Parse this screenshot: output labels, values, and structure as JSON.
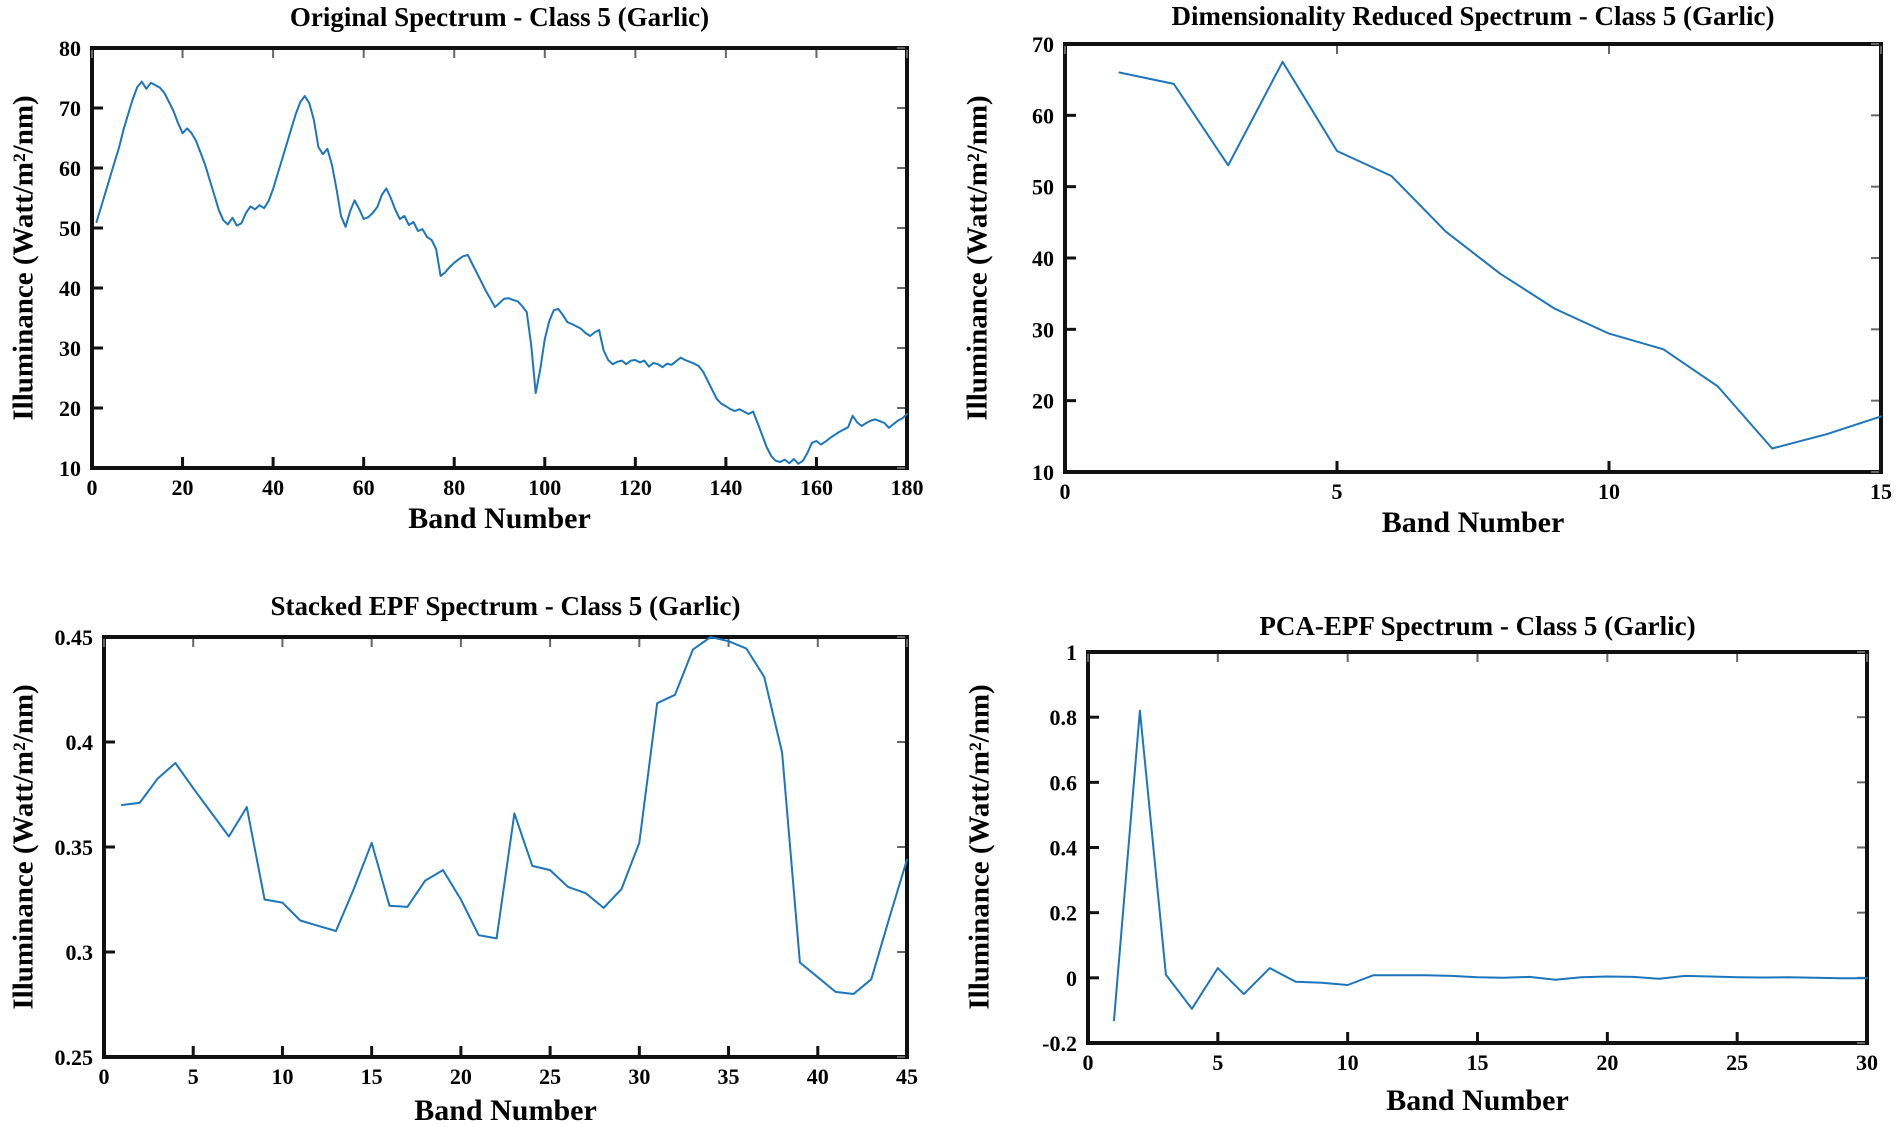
{
  "figure": {
    "background": "#ffffff",
    "axis_color": "#111111",
    "text_color": "#000000",
    "x_axis_label": "Band Number",
    "y_axis_label": "Illuminance (Watt/m²/nm)"
  },
  "chart_data": [
    {
      "id": "original-spectrum",
      "type": "line",
      "title": "Original Spectrum - Class 5 (Garlic)",
      "xlabel": "Band Number",
      "ylabel": "Illuminance (Watt/m²/nm)",
      "xlim": [
        0,
        180
      ],
      "ylim": [
        10,
        80
      ],
      "xticks": [
        0,
        20,
        40,
        60,
        80,
        100,
        120,
        140,
        160,
        180
      ],
      "yticks": [
        10,
        20,
        30,
        40,
        50,
        60,
        70,
        80
      ],
      "grid": false,
      "legend": "none",
      "line_color": "#1b76bd",
      "x": [
        1,
        2,
        3,
        4,
        5,
        6,
        7,
        8,
        9,
        10,
        11,
        12,
        13,
        14,
        15,
        16,
        17,
        18,
        19,
        20,
        21,
        22,
        23,
        24,
        25,
        26,
        27,
        28,
        29,
        30,
        31,
        32,
        33,
        34,
        35,
        36,
        37,
        38,
        39,
        40,
        41,
        42,
        43,
        44,
        45,
        46,
        47,
        48,
        49,
        50,
        51,
        52,
        53,
        54,
        55,
        56,
        57,
        58,
        59,
        60,
        61,
        62,
        63,
        64,
        65,
        66,
        67,
        68,
        69,
        70,
        71,
        72,
        73,
        74,
        75,
        76,
        77,
        78,
        79,
        80,
        81,
        82,
        83,
        84,
        85,
        86,
        87,
        88,
        89,
        90,
        91,
        92,
        93,
        94,
        95,
        96,
        97,
        98,
        99,
        100,
        101,
        102,
        103,
        104,
        105,
        106,
        107,
        108,
        109,
        110,
        111,
        112,
        113,
        114,
        115,
        116,
        117,
        118,
        119,
        120,
        121,
        122,
        123,
        124,
        125,
        126,
        127,
        128,
        129,
        130,
        131,
        132,
        133,
        134,
        135,
        136,
        137,
        138,
        139,
        140,
        141,
        142,
        143,
        144,
        145,
        146,
        147,
        148,
        149,
        150,
        151,
        152,
        153,
        154,
        155,
        156,
        157,
        158,
        159,
        160,
        161,
        162,
        163,
        164,
        165,
        166,
        167,
        168,
        169,
        170,
        171,
        172,
        173,
        174,
        175,
        176,
        177,
        178,
        179,
        180
      ],
      "y": [
        51,
        53.5,
        56,
        58.5,
        61,
        63.5,
        66.5,
        69,
        71.5,
        73.5,
        74.4,
        73.2,
        74.2,
        73.8,
        73.4,
        72.5,
        71,
        69.5,
        67.5,
        65.8,
        66.6,
        65.8,
        64.5,
        62.5,
        60.5,
        58,
        55.5,
        53,
        51.3,
        50.6,
        51.7,
        50.4,
        50.8,
        52.5,
        53.6,
        53.1,
        53.8,
        53.3,
        54.5,
        56.5,
        59,
        61.5,
        64,
        66.5,
        69,
        71,
        72,
        70.8,
        68,
        63.5,
        62.3,
        63.2,
        60.5,
        56.5,
        52,
        50.2,
        52.8,
        54.6,
        53.2,
        51.5,
        51.8,
        52.5,
        53.5,
        55.5,
        56.6,
        55,
        53,
        51.5,
        52,
        50.5,
        51,
        49.5,
        49.8,
        48.5,
        48,
        46.5,
        42,
        42.6,
        43.5,
        44.2,
        44.8,
        45.3,
        45.5,
        44,
        42.5,
        41,
        39.5,
        38.2,
        36.8,
        37.5,
        38.2,
        38.3,
        38,
        37.8,
        37,
        36,
        30.5,
        22.5,
        26.5,
        31.5,
        34.5,
        36.3,
        36.5,
        35.5,
        34.3,
        34,
        33.6,
        33.2,
        32.5,
        32,
        32.6,
        33,
        29.6,
        28,
        27.3,
        27.7,
        27.9,
        27.3,
        27.9,
        28,
        27.6,
        27.9,
        26.9,
        27.5,
        27.3,
        26.8,
        27.4,
        27.2,
        27.8,
        28.4,
        28,
        27.7,
        27.4,
        27,
        26,
        24.5,
        23,
        21.5,
        20.7,
        20.3,
        19.8,
        19.5,
        19.8,
        19.4,
        19,
        19.4,
        17.5,
        15.5,
        13.5,
        12,
        11.2,
        11,
        11.4,
        10.8,
        11.5,
        10.7,
        11.2,
        12.5,
        14.2,
        14.5,
        13.9,
        14.4,
        15,
        15.5,
        16,
        16.4,
        16.8,
        18.7,
        17.6,
        17,
        17.5,
        17.9,
        18.1,
        17.8,
        17.5,
        16.7,
        17.3,
        17.9,
        18.3,
        19
      ]
    },
    {
      "id": "dimensionality-reduced-spectrum",
      "type": "line",
      "title": "Dimensionality Reduced Spectrum - Class 5 (Garlic)",
      "xlabel": "Band Number",
      "ylabel": "Illuminance (Watt/m²/nm)",
      "xlim": [
        0,
        15
      ],
      "ylim": [
        10,
        70
      ],
      "xticks": [
        0,
        5,
        10,
        15
      ],
      "yticks": [
        10,
        20,
        30,
        40,
        50,
        60,
        70
      ],
      "grid": false,
      "legend": "none",
      "line_color": "#1b76bd",
      "x": [
        1,
        2,
        3,
        4,
        5,
        6,
        7,
        8,
        9,
        10,
        11,
        12,
        13,
        14,
        15
      ],
      "y": [
        66,
        64.4,
        53,
        67.5,
        55,
        51.5,
        43.7,
        37.8,
        32.9,
        29.4,
        27.2,
        22,
        13.3,
        15.3,
        17.8
      ]
    },
    {
      "id": "stacked-epf-spectrum",
      "type": "line",
      "title": "Stacked EPF Spectrum - Class 5 (Garlic)",
      "xlabel": "Band Number",
      "ylabel": "Illuminance (Watt/m²/nm)",
      "xlim": [
        0,
        45
      ],
      "ylim": [
        0.25,
        0.45
      ],
      "xticks": [
        0,
        5,
        10,
        15,
        20,
        25,
        30,
        35,
        40,
        45
      ],
      "yticks": [
        0.25,
        0.3,
        0.35,
        0.4,
        0.45
      ],
      "grid": false,
      "legend": "none",
      "line_color": "#1b76bd",
      "x": [
        1,
        2,
        3,
        4,
        5,
        6,
        7,
        8,
        9,
        10,
        11,
        12,
        13,
        14,
        15,
        16,
        17,
        18,
        19,
        20,
        21,
        22,
        23,
        24,
        25,
        26,
        27,
        28,
        29,
        30,
        31,
        32,
        33,
        34,
        35,
        36,
        37,
        38,
        39,
        40,
        41,
        42,
        43,
        44,
        45
      ],
      "y": [
        0.37,
        0.371,
        0.3825,
        0.39,
        0.378,
        0.3665,
        0.355,
        0.369,
        0.325,
        0.3235,
        0.315,
        0.3125,
        0.31,
        0.33,
        0.352,
        0.322,
        0.3215,
        0.334,
        0.339,
        0.325,
        0.308,
        0.3065,
        0.366,
        0.341,
        0.339,
        0.331,
        0.328,
        0.321,
        0.33,
        0.352,
        0.4185,
        0.4225,
        0.444,
        0.45,
        0.448,
        0.4445,
        0.431,
        0.395,
        0.295,
        0.288,
        0.281,
        0.28,
        0.287,
        0.316,
        0.344
      ]
    },
    {
      "id": "pca-epf-spectrum",
      "type": "line",
      "title": "PCA-EPF Spectrum - Class 5 (Garlic)",
      "xlabel": "Band Number",
      "ylabel": "Illuminance (Watt/m²/nm)",
      "xlim": [
        0,
        30
      ],
      "ylim": [
        -0.2,
        1
      ],
      "xticks": [
        0,
        5,
        10,
        15,
        20,
        25,
        30
      ],
      "yticks": [
        -0.2,
        0,
        0.2,
        0.4,
        0.6,
        0.8,
        1
      ],
      "grid": false,
      "legend": "none",
      "line_color": "#1b76bd",
      "x": [
        1,
        2,
        3,
        4,
        5,
        6,
        7,
        8,
        9,
        10,
        11,
        12,
        13,
        14,
        15,
        16,
        17,
        18,
        19,
        20,
        21,
        22,
        23,
        24,
        25,
        26,
        27,
        28,
        29,
        30
      ],
      "y": [
        -0.13,
        0.82,
        0.01,
        -0.095,
        0.03,
        -0.05,
        0.03,
        -0.012,
        -0.015,
        -0.022,
        0.008,
        0.008,
        0.008,
        0.006,
        0.002,
        0,
        0.003,
        -0.006,
        0.002,
        0.004,
        0.003,
        -0.003,
        0.006,
        0.004,
        0.002,
        0.001,
        0.002,
        0,
        -0.001,
        -0.001
      ]
    }
  ]
}
